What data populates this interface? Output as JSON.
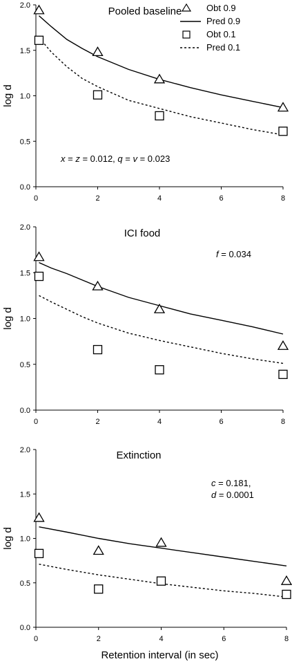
{
  "chart_data": [
    {
      "type": "scatter",
      "title": "Pooled baseline",
      "annotation": [
        {
          "text": "x",
          "italic": true
        },
        {
          "text": " = "
        },
        {
          "text": "z",
          "italic": true
        },
        {
          "text": " = 0.012, "
        },
        {
          "text": "q",
          "italic": true
        },
        {
          "text": " = "
        },
        {
          "text": "v",
          "italic": true
        },
        {
          "text": " = 0.023"
        }
      ],
      "ylabel": "log d",
      "xlabel": "",
      "xlim": [
        0,
        8
      ],
      "ylim": [
        0,
        2
      ],
      "xticks": [
        "0",
        "2",
        "4",
        "6",
        "8"
      ],
      "yticks": [
        "0.0",
        "0.5",
        "1.0",
        "1.5",
        "2.0"
      ],
      "legend": {
        "placement": "top-right",
        "entries": [
          {
            "label": "Obt 0.9",
            "marker": "triangle"
          },
          {
            "label": "Pred 0.9",
            "line": "solid"
          },
          {
            "label": "Obt 0.1",
            "marker": "square"
          },
          {
            "label": "Pred 0.1",
            "line": "dashed"
          }
        ]
      },
      "series": [
        {
          "name": "Obt 0.9",
          "kind": "points",
          "marker": "triangle",
          "x": [
            0.1,
            2,
            4,
            8
          ],
          "y": [
            1.94,
            1.48,
            1.18,
            0.87
          ]
        },
        {
          "name": "Obt 0.1",
          "kind": "points",
          "marker": "square",
          "x": [
            0.1,
            2,
            4,
            8
          ],
          "y": [
            1.61,
            1.01,
            0.78,
            0.61
          ]
        },
        {
          "name": "Pred 0.9",
          "kind": "line",
          "style": "solid",
          "x": [
            0.1,
            0.5,
            1,
            1.5,
            2,
            3,
            4,
            5,
            6,
            7,
            8
          ],
          "y": [
            1.88,
            1.76,
            1.62,
            1.52,
            1.43,
            1.29,
            1.18,
            1.09,
            1.01,
            0.94,
            0.87
          ]
        },
        {
          "name": "Pred 0.1",
          "kind": "line",
          "style": "dashed",
          "x": [
            0.1,
            0.5,
            1,
            1.5,
            2,
            3,
            4,
            5,
            6,
            7,
            8
          ],
          "y": [
            1.64,
            1.48,
            1.32,
            1.19,
            1.1,
            0.95,
            0.86,
            0.77,
            0.7,
            0.63,
            0.57
          ]
        }
      ]
    },
    {
      "type": "scatter",
      "title": "ICI food",
      "annotation": [
        {
          "text": "f",
          "italic": true
        },
        {
          "text": " = 0.034"
        }
      ],
      "ylabel": "log d",
      "xlabel": "",
      "xlim": [
        0,
        8
      ],
      "ylim": [
        0,
        2
      ],
      "xticks": [
        "0",
        "2",
        "4",
        "6",
        "8"
      ],
      "yticks": [
        "0.0",
        "0.5",
        "1.0",
        "1.5",
        "2.0"
      ],
      "series": [
        {
          "name": "Obt 0.9",
          "kind": "points",
          "marker": "triangle",
          "x": [
            0.1,
            2,
            4,
            8
          ],
          "y": [
            1.67,
            1.35,
            1.1,
            0.7
          ]
        },
        {
          "name": "Obt 0.1",
          "kind": "points",
          "marker": "square",
          "x": [
            0.1,
            2,
            4,
            8
          ],
          "y": [
            1.46,
            0.66,
            0.44,
            0.39
          ]
        },
        {
          "name": "Pred 0.9",
          "kind": "line",
          "style": "solid",
          "x": [
            0.1,
            0.5,
            1,
            1.5,
            2,
            3,
            4,
            5,
            6,
            7,
            8
          ],
          "y": [
            1.61,
            1.55,
            1.49,
            1.42,
            1.35,
            1.23,
            1.14,
            1.05,
            0.98,
            0.91,
            0.83
          ]
        },
        {
          "name": "Pred 0.1",
          "kind": "line",
          "style": "dashed",
          "x": [
            0.1,
            0.5,
            1,
            1.5,
            2,
            3,
            4,
            5,
            6,
            7,
            8
          ],
          "y": [
            1.25,
            1.18,
            1.1,
            1.02,
            0.95,
            0.84,
            0.76,
            0.69,
            0.62,
            0.56,
            0.51
          ]
        }
      ]
    },
    {
      "type": "scatter",
      "title": "Extinction",
      "annotation": [
        {
          "text": "c",
          "italic": true
        },
        {
          "text": " = 0.181,"
        },
        {
          "break": true
        },
        {
          "text": "d",
          "italic": true
        },
        {
          "text": " = 0.0001"
        }
      ],
      "ylabel": "log d",
      "xlabel": "Retention interval (in sec)",
      "xlim": [
        0,
        8
      ],
      "ylim": [
        0,
        2
      ],
      "xticks": [
        "0",
        "2",
        "4",
        "6",
        "8"
      ],
      "yticks": [
        "0.0",
        "0.5",
        "1.0",
        "1.5",
        "2.0"
      ],
      "series": [
        {
          "name": "Obt 0.9",
          "kind": "points",
          "marker": "triangle",
          "x": [
            0.1,
            2,
            4,
            8
          ],
          "y": [
            1.23,
            0.86,
            0.95,
            0.52
          ]
        },
        {
          "name": "Obt 0.1",
          "kind": "points",
          "marker": "square",
          "x": [
            0.1,
            2,
            4,
            8
          ],
          "y": [
            0.83,
            0.43,
            0.52,
            0.37
          ]
        },
        {
          "name": "Pred 0.9",
          "kind": "line",
          "style": "solid",
          "x": [
            0.1,
            1,
            2,
            3,
            4,
            5,
            6,
            7,
            8
          ],
          "y": [
            1.13,
            1.07,
            1.0,
            0.94,
            0.89,
            0.84,
            0.79,
            0.74,
            0.69
          ]
        },
        {
          "name": "Pred 0.1",
          "kind": "line",
          "style": "dashed",
          "x": [
            0.1,
            1,
            2,
            3,
            4,
            5,
            6,
            7,
            8
          ],
          "y": [
            0.71,
            0.65,
            0.59,
            0.54,
            0.49,
            0.45,
            0.41,
            0.38,
            0.34
          ]
        }
      ]
    }
  ]
}
